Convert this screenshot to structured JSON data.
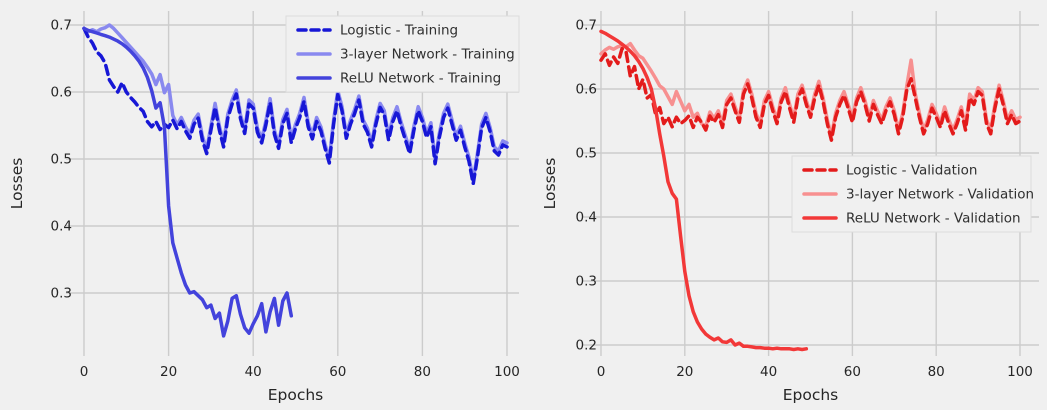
{
  "figure": {
    "background_color": "#f0f0f0",
    "grid_color": "#cccccc",
    "text_color": "#262626",
    "legend_background": "#f0f0f0",
    "legend_border": "#dcdcdc"
  },
  "chart_data": [
    {
      "id": "training-losses",
      "type": "line",
      "title": "",
      "xlabel": "Epochs",
      "ylabel": "Losses",
      "xticks": [
        0,
        20,
        40,
        60,
        80,
        100
      ],
      "yticks": [
        0.3,
        0.4,
        0.5,
        0.6,
        0.7
      ],
      "xlim": [
        0,
        100
      ],
      "ylim": [
        0.2,
        0.713
      ],
      "grid": true,
      "legend_position": "upper-right",
      "series": [
        {
          "name": "Logistic - Training",
          "color": "#1717d6",
          "dashed": true,
          "draw_order": 1,
          "x_start": 0,
          "x_step": 1,
          "values": [
            0.695,
            0.682,
            0.673,
            0.66,
            0.654,
            0.643,
            0.618,
            0.608,
            0.6,
            0.614,
            0.6,
            0.592,
            0.585,
            0.577,
            0.571,
            0.556,
            0.548,
            0.556,
            0.544,
            0.552,
            0.547,
            0.558,
            0.545,
            0.556,
            0.542,
            0.531,
            0.552,
            0.561,
            0.528,
            0.508,
            0.543,
            0.577,
            0.543,
            0.518,
            0.561,
            0.582,
            0.597,
            0.56,
            0.538,
            0.582,
            0.576,
            0.54,
            0.524,
            0.551,
            0.584,
            0.537,
            0.516,
            0.553,
            0.568,
            0.524,
            0.546,
            0.562,
            0.586,
            0.548,
            0.53,
            0.556,
            0.542,
            0.516,
            0.494,
            0.552,
            0.596,
            0.572,
            0.531,
            0.552,
            0.568,
            0.588,
            0.552,
            0.54,
            0.518,
            0.552,
            0.577,
            0.566,
            0.528,
            0.556,
            0.572,
            0.548,
            0.528,
            0.508,
            0.543,
            0.572,
            0.556,
            0.532,
            0.548,
            0.493,
            0.532,
            0.562,
            0.576,
            0.552,
            0.528,
            0.543,
            0.518,
            0.497,
            0.463,
            0.502,
            0.546,
            0.562,
            0.541,
            0.512,
            0.506,
            0.521,
            0.518
          ]
        },
        {
          "name": "3-layer Network - Training",
          "color": "#8989ef",
          "dashed": false,
          "draw_order": 0,
          "x_start": 0,
          "x_step": 1,
          "values": [
            0.695,
            0.69,
            0.693,
            0.69,
            0.694,
            0.696,
            0.7,
            0.695,
            0.688,
            0.681,
            0.674,
            0.667,
            0.66,
            0.653,
            0.646,
            0.637,
            0.627,
            0.611,
            0.626,
            0.599,
            0.611,
            0.565,
            0.551,
            0.562,
            0.548,
            0.537,
            0.558,
            0.567,
            0.534,
            0.514,
            0.549,
            0.583,
            0.549,
            0.524,
            0.567,
            0.588,
            0.603,
            0.566,
            0.544,
            0.588,
            0.582,
            0.546,
            0.53,
            0.557,
            0.59,
            0.543,
            0.522,
            0.559,
            0.574,
            0.53,
            0.552,
            0.568,
            0.592,
            0.554,
            0.536,
            0.562,
            0.548,
            0.522,
            0.5,
            0.558,
            0.602,
            0.578,
            0.537,
            0.558,
            0.574,
            0.594,
            0.558,
            0.546,
            0.524,
            0.558,
            0.583,
            0.572,
            0.534,
            0.562,
            0.578,
            0.554,
            0.534,
            0.514,
            0.549,
            0.578,
            0.562,
            0.538,
            0.554,
            0.499,
            0.538,
            0.568,
            0.582,
            0.558,
            0.534,
            0.549,
            0.524,
            0.503,
            0.469,
            0.508,
            0.552,
            0.568,
            0.547,
            0.518,
            0.512,
            0.527,
            0.524
          ]
        },
        {
          "name": "ReLU Network - Training",
          "color": "#4343dc",
          "dashed": false,
          "draw_order": 2,
          "x_start": 0,
          "x_step": 1,
          "values": [
            0.695,
            0.692,
            0.69,
            0.688,
            0.686,
            0.684,
            0.682,
            0.679,
            0.676,
            0.672,
            0.667,
            0.661,
            0.654,
            0.646,
            0.636,
            0.622,
            0.602,
            0.576,
            0.584,
            0.548,
            0.43,
            0.375,
            0.352,
            0.33,
            0.312,
            0.3,
            0.302,
            0.296,
            0.29,
            0.278,
            0.282,
            0.262,
            0.27,
            0.236,
            0.258,
            0.292,
            0.296,
            0.268,
            0.248,
            0.24,
            0.254,
            0.266,
            0.284,
            0.242,
            0.272,
            0.292,
            0.252,
            0.288,
            0.3,
            0.266
          ]
        }
      ]
    },
    {
      "id": "validation-losses",
      "type": "line",
      "title": "",
      "xlabel": "Epochs",
      "ylabel": "Losses",
      "xticks": [
        0,
        20,
        40,
        60,
        80,
        100
      ],
      "yticks": [
        0.2,
        0.3,
        0.4,
        0.5,
        0.6,
        0.7
      ],
      "xlim": [
        0,
        100
      ],
      "ylim": [
        0.18,
        0.715
      ],
      "grid": true,
      "legend_position": "center-right",
      "series": [
        {
          "name": "Logistic - Validation",
          "color": "#e31b1b",
          "dashed": true,
          "draw_order": 1,
          "x_start": 0,
          "x_step": 1,
          "values": [
            0.645,
            0.655,
            0.637,
            0.65,
            0.64,
            0.663,
            0.658,
            0.62,
            0.635,
            0.6,
            0.615,
            0.586,
            0.591,
            0.561,
            0.571,
            0.546,
            0.556,
            0.541,
            0.556,
            0.546,
            0.551,
            0.558,
            0.54,
            0.556,
            0.548,
            0.536,
            0.558,
            0.548,
            0.56,
            0.54,
            0.576,
            0.586,
            0.566,
            0.548,
            0.592,
            0.608,
            0.586,
            0.556,
            0.54,
            0.576,
            0.59,
            0.566,
            0.546,
            0.58,
            0.596,
            0.57,
            0.548,
            0.586,
            0.6,
            0.576,
            0.556,
            0.586,
            0.606,
            0.58,
            0.546,
            0.52,
            0.556,
            0.576,
            0.59,
            0.57,
            0.548,
            0.58,
            0.596,
            0.576,
            0.55,
            0.576,
            0.56,
            0.546,
            0.566,
            0.58,
            0.56,
            0.53,
            0.556,
            0.6,
            0.616,
            0.586,
            0.556,
            0.53,
            0.546,
            0.57,
            0.556,
            0.54,
            0.566,
            0.546,
            0.53,
            0.546,
            0.566,
            0.536,
            0.586,
            0.576,
            0.596,
            0.59,
            0.546,
            0.53,
            0.57,
            0.6,
            0.576,
            0.546,
            0.56,
            0.546,
            0.55
          ]
        },
        {
          "name": "3-layer Network - Validation",
          "color": "#f79090",
          "dashed": false,
          "draw_order": 0,
          "x_start": 0,
          "x_step": 1,
          "values": [
            0.655,
            0.661,
            0.665,
            0.662,
            0.666,
            0.668,
            0.666,
            0.671,
            0.661,
            0.652,
            0.648,
            0.638,
            0.628,
            0.617,
            0.605,
            0.6,
            0.588,
            0.576,
            0.596,
            0.581,
            0.566,
            0.576,
            0.556,
            0.562,
            0.546,
            0.542,
            0.564,
            0.554,
            0.566,
            0.546,
            0.582,
            0.592,
            0.572,
            0.554,
            0.598,
            0.614,
            0.592,
            0.562,
            0.546,
            0.582,
            0.596,
            0.572,
            0.552,
            0.586,
            0.602,
            0.576,
            0.554,
            0.592,
            0.606,
            0.582,
            0.562,
            0.592,
            0.612,
            0.586,
            0.552,
            0.526,
            0.562,
            0.582,
            0.596,
            0.576,
            0.554,
            0.586,
            0.602,
            0.582,
            0.556,
            0.582,
            0.566,
            0.552,
            0.572,
            0.586,
            0.566,
            0.536,
            0.562,
            0.606,
            0.645,
            0.592,
            0.562,
            0.536,
            0.552,
            0.576,
            0.562,
            0.546,
            0.572,
            0.552,
            0.536,
            0.552,
            0.572,
            0.542,
            0.592,
            0.582,
            0.602,
            0.596,
            0.552,
            0.536,
            0.576,
            0.606,
            0.582,
            0.552,
            0.566,
            0.552,
            0.556
          ]
        },
        {
          "name": "ReLU Network - Validation",
          "color": "#f23838",
          "dashed": false,
          "draw_order": 2,
          "x_start": 0,
          "x_step": 1,
          "values": [
            0.69,
            0.687,
            0.683,
            0.679,
            0.675,
            0.67,
            0.665,
            0.659,
            0.652,
            0.643,
            0.632,
            0.618,
            0.6,
            0.57,
            0.53,
            0.495,
            0.455,
            0.437,
            0.428,
            0.37,
            0.315,
            0.277,
            0.252,
            0.236,
            0.225,
            0.217,
            0.212,
            0.208,
            0.211,
            0.205,
            0.204,
            0.208,
            0.2,
            0.203,
            0.198,
            0.198,
            0.197,
            0.196,
            0.196,
            0.195,
            0.195,
            0.194,
            0.195,
            0.194,
            0.194,
            0.194,
            0.193,
            0.194,
            0.193,
            0.194
          ]
        }
      ]
    }
  ]
}
